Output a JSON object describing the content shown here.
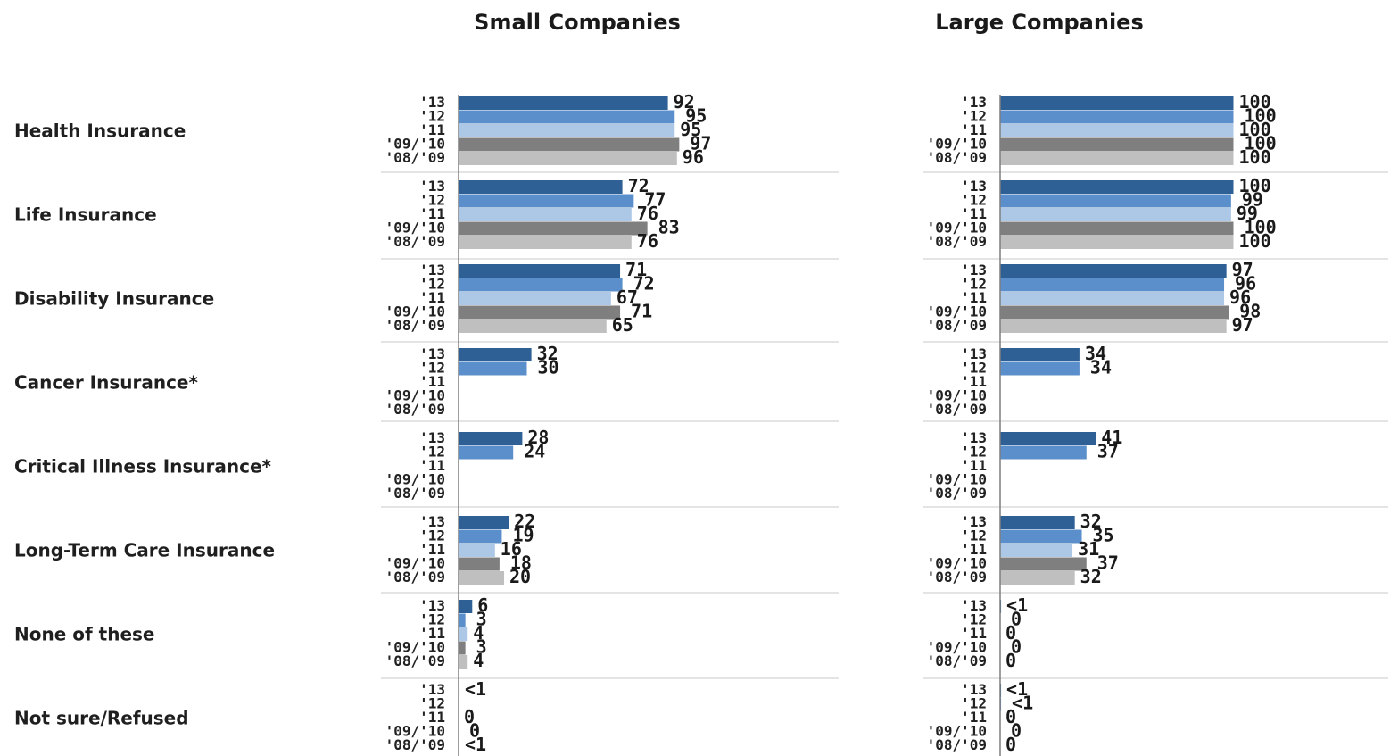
{
  "chart_data": {
    "type": "bar",
    "orientation": "horizontal",
    "categories": [
      "Health Insurance",
      "Life Insurance",
      "Disability Insurance",
      "Cancer Insurance*",
      "Critical Illness Insurance*",
      "Long-Term Care Insurance",
      "None of these",
      "Not sure/Refused"
    ],
    "years": [
      "'13",
      "'12",
      "'11",
      "'09/'10",
      "'08/'09"
    ],
    "colors": [
      "#2E6096",
      "#5B8FCB",
      "#ACC8E6",
      "#7F7F7F",
      "#BFBFBF"
    ],
    "xlim": [
      0,
      100
    ],
    "grid": false,
    "panels": [
      {
        "title": "Small Companies",
        "values": [
          [
            92,
            95,
            95,
            97,
            96
          ],
          [
            72,
            77,
            76,
            83,
            76
          ],
          [
            71,
            72,
            67,
            71,
            65
          ],
          [
            32,
            30,
            null,
            null,
            null
          ],
          [
            28,
            24,
            null,
            null,
            null
          ],
          [
            22,
            19,
            16,
            18,
            20
          ],
          [
            6,
            3,
            4,
            3,
            4
          ],
          [
            0.4,
            0,
            0,
            0,
            0.4
          ]
        ],
        "labels": [
          [
            "92",
            "95",
            "95",
            "97",
            "96"
          ],
          [
            "72",
            "77",
            "76",
            "83",
            "76"
          ],
          [
            "71",
            "72",
            "67",
            "71",
            "65"
          ],
          [
            "32",
            "30",
            "",
            "",
            ""
          ],
          [
            "28",
            "24",
            "",
            "",
            ""
          ],
          [
            "22",
            "19",
            "16",
            "18",
            "20"
          ],
          [
            "6",
            "3",
            "4",
            "3",
            "4"
          ],
          [
            "<1",
            "",
            "0",
            "0",
            "<1"
          ]
        ]
      },
      {
        "title": "Large Companies",
        "values": [
          [
            100,
            100,
            100,
            100,
            100
          ],
          [
            100,
            99,
            99,
            100,
            100
          ],
          [
            97,
            96,
            96,
            98,
            97
          ],
          [
            34,
            34,
            null,
            null,
            null
          ],
          [
            41,
            37,
            null,
            null,
            null
          ],
          [
            32,
            35,
            31,
            37,
            32
          ],
          [
            0.4,
            0,
            0,
            0,
            0
          ],
          [
            0.4,
            0.4,
            0,
            0,
            0
          ]
        ],
        "labels": [
          [
            "100",
            "100",
            "100",
            "100",
            "100"
          ],
          [
            "100",
            "99",
            "99",
            "100",
            "100"
          ],
          [
            "97",
            "96",
            "96",
            "98",
            "97"
          ],
          [
            "34",
            "34",
            "",
            "",
            ""
          ],
          [
            "41",
            "37",
            "",
            "",
            ""
          ],
          [
            "32",
            "35",
            "31",
            "37",
            "32"
          ],
          [
            "<1",
            "0",
            "0",
            "0",
            "0"
          ],
          [
            "<1",
            "<1",
            "0",
            "0",
            "0"
          ]
        ]
      }
    ]
  }
}
